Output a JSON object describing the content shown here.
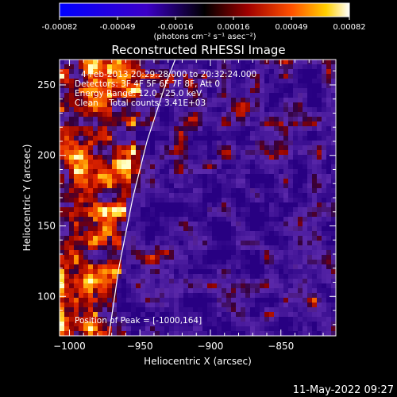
{
  "chart_data": {
    "type": "heatmap",
    "title": "Reconstructed RHESSI Image",
    "xlabel": "Heliocentric X (arcsec)",
    "ylabel": "Heliocentric Y (arcsec)",
    "xlim": [
      -1007,
      -811
    ],
    "ylim": [
      72,
      268
    ],
    "xticks": [
      -1000,
      -950,
      -900,
      -850
    ],
    "yticks": [
      100,
      150,
      200,
      250
    ],
    "colorbar": {
      "range": [
        -0.00082,
        0.00082
      ],
      "ticks": [
        "-0.00082",
        "-0.00049",
        "-0.00016",
        "0.00016",
        "0.00049",
        "0.00082"
      ],
      "unit_label": "(photons cm⁻² s⁻¹ asec⁻²)"
    },
    "info_lines": [
      "4-Feb-2013 20:29:28.000 to 20:32:24.000",
      "Detectors: 3F 4F 5F 6F 7F 8F, Att 0",
      "Energy Range: 12.0 - 25.0 keV",
      "Clean    Total counts: 3.41E+03"
    ],
    "peak_label": "Position of Peak = [-1000,164]",
    "peak_position": [
      -1000,
      164
    ],
    "limb_curve": [
      [
        -972,
        72
      ],
      [
        -965,
        120
      ],
      [
        -955,
        170
      ],
      [
        -945,
        210
      ],
      [
        -932,
        250
      ],
      [
        -925,
        268
      ]
    ]
  },
  "footer": {
    "timestamp": "11-May-2022 09:27"
  },
  "colors": {
    "background": "#000000",
    "foreground": "#ffffff"
  }
}
